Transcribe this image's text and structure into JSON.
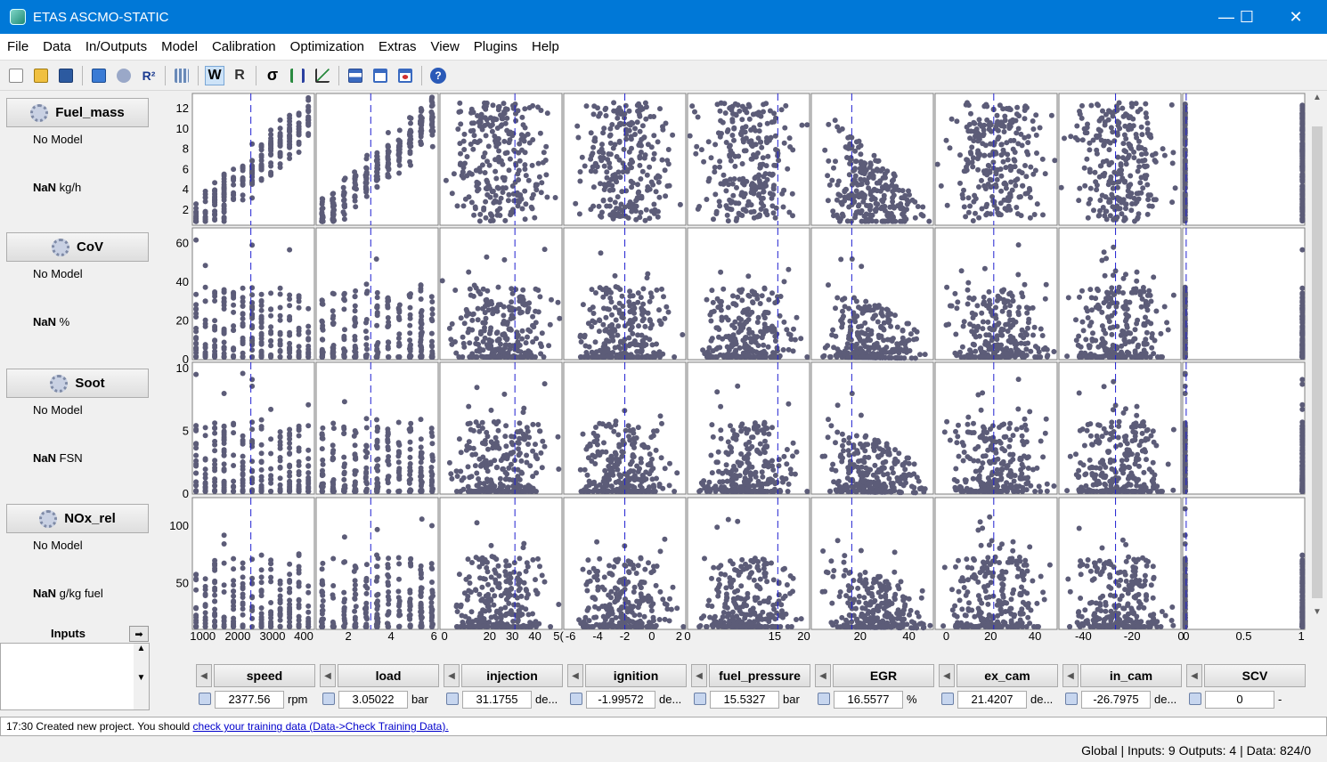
{
  "window": {
    "title": "ETAS ASCMO-STATIC",
    "minimize": "—",
    "maximize": "☐",
    "close": "✕"
  },
  "menu": [
    "File",
    "Data",
    "In/Outputs",
    "Model",
    "Calibration",
    "Optimization",
    "Extras",
    "View",
    "Plugins",
    "Help"
  ],
  "toolbar": {
    "w_label": "W",
    "r_label": "R",
    "sigma_label": "σ",
    "r2_label": "R²",
    "help_label": "?"
  },
  "outputs": [
    {
      "name": "Fuel_mass",
      "model": "No Model",
      "value": "NaN",
      "unit": "kg/h"
    },
    {
      "name": "CoV",
      "model": "No Model",
      "value": "NaN",
      "unit": "%"
    },
    {
      "name": "Soot",
      "model": "No Model",
      "value": "NaN",
      "unit": "FSN"
    },
    {
      "name": "NOx_rel",
      "model": "No Model",
      "value": "NaN",
      "unit": "g/kg fuel"
    }
  ],
  "inputs_panel": {
    "label": "Inputs",
    "arrow": "➡"
  },
  "inputs": [
    {
      "name": "speed",
      "value": "2377.56",
      "unit": "rpm"
    },
    {
      "name": "load",
      "value": "3.05022",
      "unit": "bar"
    },
    {
      "name": "injection",
      "value": "31.1755",
      "unit": "de..."
    },
    {
      "name": "ignition",
      "value": "-1.99572",
      "unit": "de..."
    },
    {
      "name": "fuel_pressure",
      "value": "15.5327",
      "unit": "bar"
    },
    {
      "name": "EGR",
      "value": "16.5577",
      "unit": "%"
    },
    {
      "name": "ex_cam",
      "value": "21.4207",
      "unit": "de..."
    },
    {
      "name": "in_cam",
      "value": "-26.7975",
      "unit": "de..."
    },
    {
      "name": "SCV",
      "value": "0",
      "unit": "-"
    }
  ],
  "chart_data": {
    "type": "scatter",
    "description_grid": "4 outputs x 9 inputs scatter matrix",
    "x_ticks": [
      [
        "1000",
        "2000",
        "3000",
        "400"
      ],
      [
        "2",
        "4",
        "6"
      ],
      [
        "0",
        "20",
        "30",
        "40",
        "5("
      ],
      [
        "-6",
        "-4",
        "-2",
        "0",
        "2"
      ],
      [
        "0",
        "15",
        "20"
      ],
      [
        "20",
        "40"
      ],
      [
        "0",
        "20",
        "40"
      ],
      [
        "-40",
        "-20",
        "0"
      ],
      [
        "0",
        "0.5",
        "1"
      ]
    ],
    "x_ranges": [
      [
        700,
        4200
      ],
      [
        0.5,
        6.2
      ],
      [
        -2,
        52
      ],
      [
        -6.5,
        2.5
      ],
      [
        0,
        21
      ],
      [
        0,
        50
      ],
      [
        -5,
        50
      ],
      [
        -50,
        0
      ],
      [
        -0.03,
        1.03
      ]
    ],
    "cursor_x": [
      2377.56,
      3.05022,
      31.1755,
      -1.99572,
      15.5327,
      16.5577,
      21.4207,
      -26.7975,
      0
    ],
    "y_ticks": [
      [
        "2",
        "4",
        "6",
        "8",
        "10",
        "12"
      ],
      [
        "0",
        "20",
        "40",
        "60"
      ],
      [
        "0",
        "5",
        "10"
      ],
      [
        "50",
        "100"
      ]
    ],
    "y_ranges": [
      [
        0.5,
        13.5
      ],
      [
        0,
        68
      ],
      [
        0,
        10.5
      ],
      [
        10,
        125
      ]
    ],
    "point_color": "#5c5c78",
    "cursor_color": "#2020d0"
  },
  "log": {
    "time": "17:30",
    "text": "Created new project. You should",
    "link": "check your training data (Data->Check Training Data)."
  },
  "status": "Global | Inputs: 9 Outputs: 4 | Data: 824/0"
}
